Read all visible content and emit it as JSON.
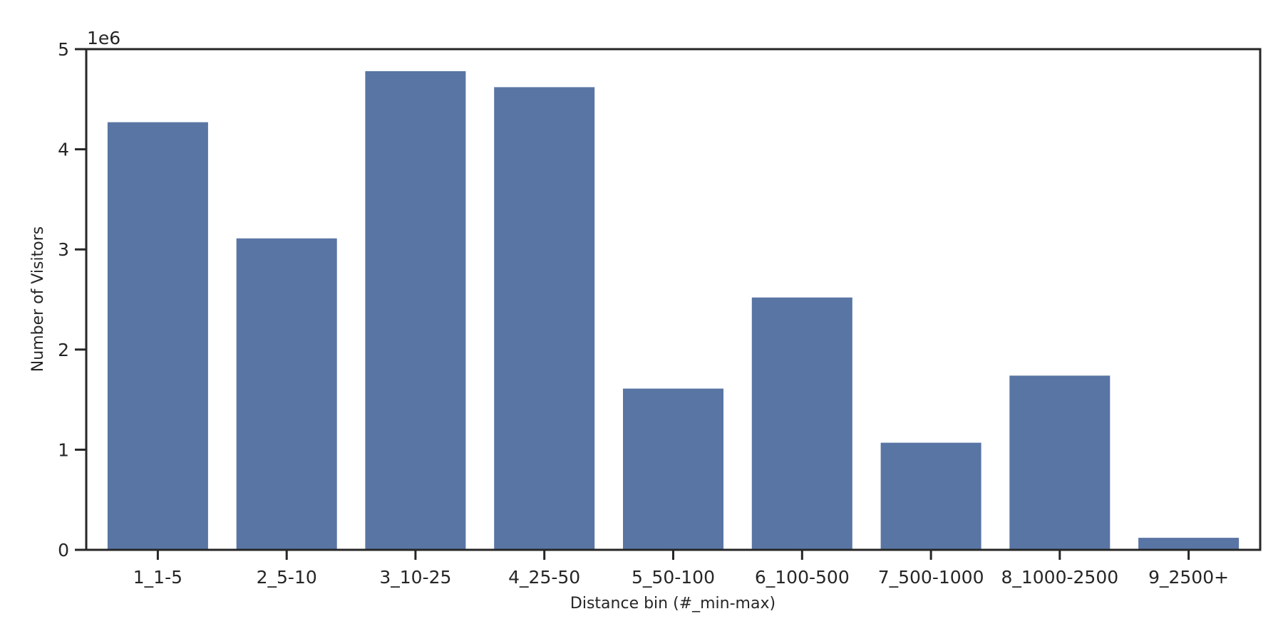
{
  "chart_data": {
    "type": "bar",
    "title": "",
    "xlabel": "Distance bin (#_min-max)",
    "ylabel": "Number of Visitors",
    "y_offset_label": "1e6",
    "y_scale": 1000000,
    "ylim": [
      0,
      5000000
    ],
    "yticks": [
      0,
      1000000,
      2000000,
      3000000,
      4000000,
      5000000
    ],
    "ytick_labels": [
      "0",
      "1",
      "2",
      "3",
      "4",
      "5"
    ],
    "categories": [
      "1_1-5",
      "2_5-10",
      "3_10-25",
      "4_25-50",
      "5_50-100",
      "6_100-500",
      "7_500-1000",
      "8_1000-2500",
      "9_2500+"
    ],
    "values": [
      4270000,
      3110000,
      4780000,
      4620000,
      1610000,
      2520000,
      1070000,
      1740000,
      120000
    ],
    "bar_color": "#5975a4",
    "grid": false,
    "legend": "none"
  }
}
